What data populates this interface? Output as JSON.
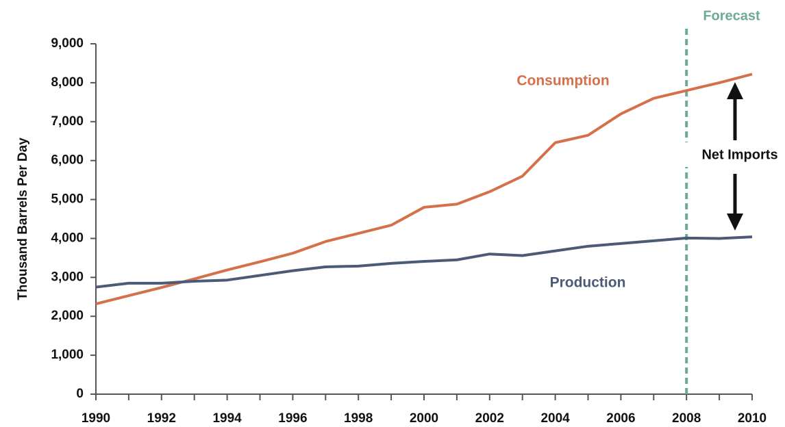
{
  "chart_data": {
    "type": "line",
    "y_label": "Thousand Barrels Per Day",
    "x": [
      1990,
      1991,
      1992,
      1993,
      1994,
      1995,
      1996,
      1997,
      1998,
      1999,
      2000,
      2001,
      2002,
      2003,
      2004,
      2005,
      2006,
      2007,
      2008,
      2009,
      2010
    ],
    "series": [
      {
        "name": "Consumption",
        "color": "#d4714b",
        "values": [
          2320,
          2530,
          2740,
          2960,
          3190,
          3400,
          3620,
          3920,
          4130,
          4340,
          4800,
          4880,
          5200,
          5600,
          6460,
          6650,
          7200,
          7600,
          7800,
          8000,
          8220
        ]
      },
      {
        "name": "Production",
        "color": "#4b5a76",
        "values": [
          2750,
          2850,
          2850,
          2900,
          2930,
          3050,
          3170,
          3270,
          3290,
          3360,
          3410,
          3450,
          3600,
          3560,
          3680,
          3800,
          3870,
          3940,
          4010,
          4000,
          4040
        ]
      }
    ],
    "xlim": [
      1990,
      2010
    ],
    "xticks": [
      1990,
      1992,
      1994,
      1996,
      1998,
      2000,
      2002,
      2004,
      2006,
      2008,
      2010
    ],
    "ylim": [
      0,
      9000
    ],
    "yticks": [
      0,
      {
        "value": 1000,
        "label": "1,000"
      },
      {
        "value": 2000,
        "label": "2,000"
      },
      {
        "value": 3000,
        "label": "3,000"
      },
      {
        "value": 4000,
        "label": "4,000"
      },
      {
        "value": 5000,
        "label": "5,000"
      },
      {
        "value": 6000,
        "label": "6,000"
      },
      {
        "value": 7000,
        "label": "7,000"
      },
      {
        "value": 8000,
        "label": "8,000"
      },
      {
        "value": 9000,
        "label": "9,000"
      }
    ],
    "forecast": {
      "label": "Forecast",
      "x": 2008,
      "color": "#6aab91"
    },
    "net_imports_label": "Net Imports"
  }
}
